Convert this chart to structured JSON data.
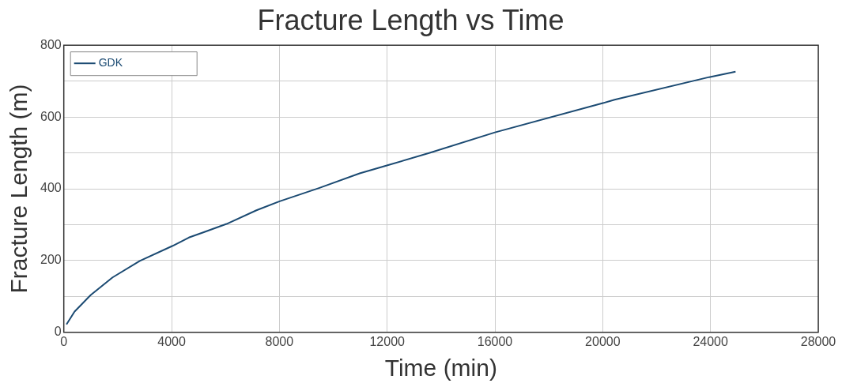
{
  "chart_data": {
    "type": "line",
    "title": "Fracture Length vs Time",
    "xlabel": "Time (min)",
    "ylabel": "Fracture Length (m)",
    "xlim": [
      0,
      28000
    ],
    "xticks": [
      0,
      4000,
      8000,
      12000,
      16000,
      20000,
      24000,
      28000
    ],
    "ylim": [
      0,
      800
    ],
    "yticks": [
      0,
      {
        "value": 100,
        "label": null
      },
      200,
      {
        "value": 300,
        "label": null
      },
      400,
      {
        "value": 500,
        "label": null
      },
      600,
      {
        "value": 700,
        "label": null
      },
      800
    ],
    "grid": true,
    "legend": "top left",
    "marker": "none",
    "line_style": "solid",
    "series": [
      {
        "name": "GDK",
        "color": "#1b4a72",
        "x": [
          100,
          400,
          1000,
          1810,
          2820,
          4040,
          4640,
          6040,
          7150,
          8010,
          9470,
          10980,
          12040,
          13580,
          16000,
          19980,
          20440,
          23950,
          24930
        ],
        "values": [
          22,
          58,
          104,
          153,
          199,
          241,
          264,
          302,
          340,
          365,
          402,
          443,
          466,
          500,
          557,
          638,
          648,
          711,
          726
        ]
      }
    ]
  }
}
